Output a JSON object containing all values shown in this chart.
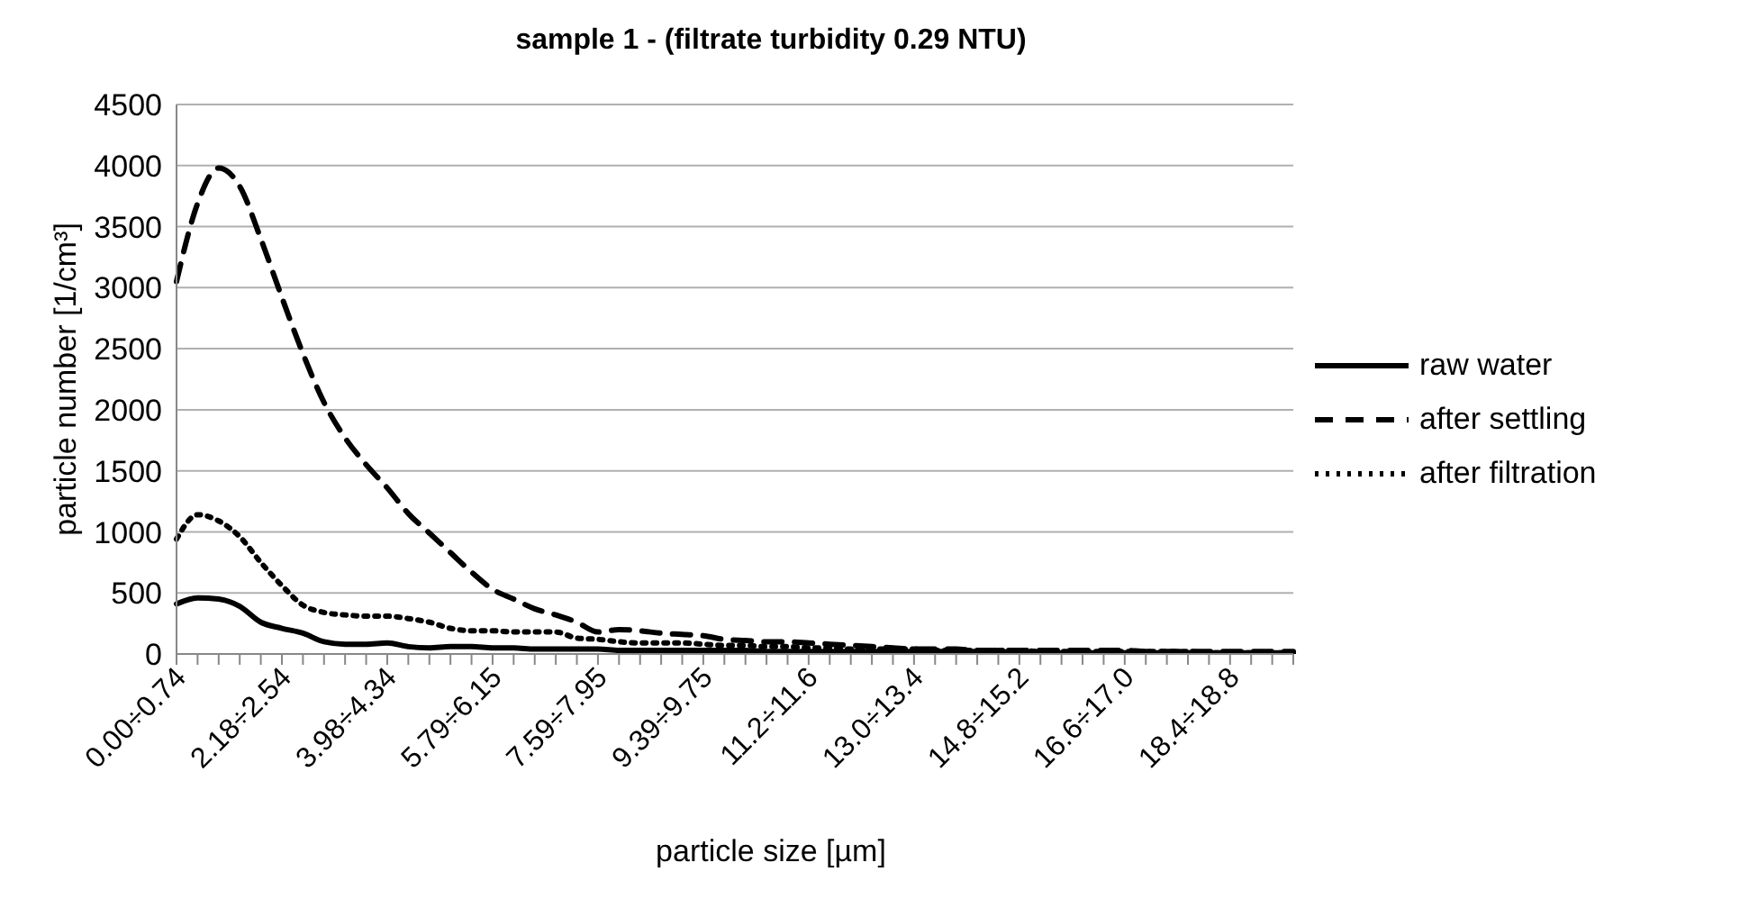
{
  "chart_data": {
    "type": "line",
    "title": "sample 1 - (filtrate turbidity 0.29 NTU)",
    "xlabel": "particle size [µm]",
    "ylabel": "particle number [1/cm³]",
    "categories": [
      "0.00÷0.74",
      null,
      null,
      null,
      null,
      "2.18÷2.54",
      null,
      null,
      null,
      null,
      "3.98÷4.34",
      null,
      null,
      null,
      null,
      "5.79÷6.15",
      null,
      null,
      null,
      null,
      "7.59÷7.95",
      null,
      null,
      null,
      null,
      "9.39÷9.75",
      null,
      null,
      null,
      null,
      "11.2÷11.6",
      null,
      null,
      null,
      null,
      "13.0÷13.4",
      null,
      null,
      null,
      null,
      "14.8÷15.2",
      null,
      null,
      null,
      null,
      "16.6÷17.0",
      null,
      null,
      null,
      null,
      "18.4÷18.8",
      null,
      null,
      null
    ],
    "series": [
      {
        "name": "raw water",
        "color": "#000000",
        "line_style": "solid",
        "values": [
          410,
          460,
          450,
          390,
          260,
          210,
          170,
          100,
          80,
          80,
          90,
          60,
          50,
          60,
          60,
          50,
          50,
          40,
          40,
          40,
          40,
          30,
          30,
          30,
          30,
          30,
          30,
          30,
          20,
          20,
          20,
          20,
          20,
          20,
          20,
          20,
          20,
          20,
          20,
          20,
          10,
          10,
          10,
          10,
          10,
          10,
          10,
          10,
          10,
          10,
          10,
          10,
          10,
          10
        ]
      },
      {
        "name": "after settling",
        "color": "#000000",
        "line_style": "dashed",
        "values": [
          3050,
          3690,
          3980,
          3830,
          3400,
          2920,
          2460,
          2060,
          1770,
          1550,
          1360,
          1150,
          990,
          830,
          670,
          530,
          450,
          370,
          320,
          260,
          180,
          200,
          190,
          170,
          160,
          150,
          120,
          110,
          100,
          100,
          90,
          80,
          70,
          60,
          50,
          40,
          40,
          40,
          30,
          30,
          30,
          30,
          30,
          30,
          30,
          30,
          20,
          20,
          20,
          20,
          20,
          20,
          20,
          20
        ]
      },
      {
        "name": "after filtration",
        "color": "#000000",
        "line_style": "dotted",
        "values": [
          940,
          1140,
          1090,
          960,
          750,
          560,
          400,
          340,
          320,
          310,
          310,
          290,
          260,
          210,
          190,
          190,
          180,
          180,
          180,
          130,
          120,
          100,
          90,
          90,
          90,
          80,
          70,
          70,
          60,
          60,
          50,
          50,
          40,
          40,
          40,
          40,
          30,
          30,
          30,
          30,
          30,
          20,
          20,
          20,
          20,
          20,
          20,
          20,
          20,
          10,
          10,
          10,
          10,
          10
        ]
      }
    ],
    "ylim": [
      0,
      4500
    ],
    "yticks": [
      0,
      500,
      1000,
      1500,
      2000,
      2500,
      3000,
      3500,
      4000,
      4500
    ],
    "grid": "y",
    "legend": "right",
    "marker": "none"
  }
}
